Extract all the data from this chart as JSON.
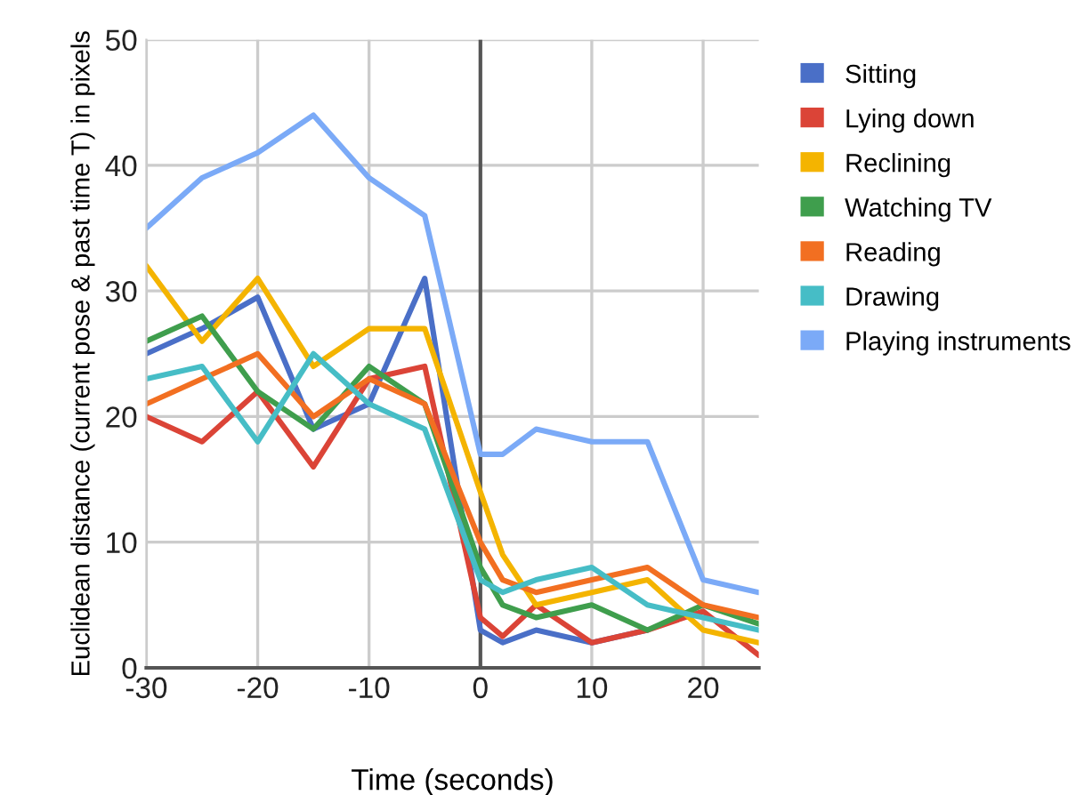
{
  "chart_data": {
    "type": "line",
    "xlabel": "Time (seconds)",
    "ylabel": "Euclidean distance (current pose & past time T) in pixels",
    "x": [
      -30,
      -25,
      -20,
      -15,
      -10,
      -5,
      0,
      2,
      5,
      10,
      15,
      20,
      25
    ],
    "series": [
      {
        "name": "Sitting",
        "color": "#4a6fc7",
        "values": [
          25,
          27,
          29.5,
          19,
          21,
          31,
          3,
          2,
          3,
          2,
          3,
          null,
          null
        ]
      },
      {
        "name": "Lying down",
        "color": "#db4437",
        "values": [
          20,
          18,
          22,
          16,
          23,
          24,
          4,
          2.5,
          5,
          2,
          3,
          4.5,
          1
        ]
      },
      {
        "name": "Reclining",
        "color": "#f4b400",
        "values": [
          32,
          26,
          31,
          24,
          27,
          27,
          14,
          9,
          5,
          6,
          7,
          3,
          2
        ]
      },
      {
        "name": "Watching TV",
        "color": "#3f9e4d",
        "values": [
          26,
          28,
          22,
          19,
          24,
          21,
          8,
          5,
          4,
          5,
          3,
          5,
          3.5
        ]
      },
      {
        "name": "Reading",
        "color": "#f26f21",
        "values": [
          21,
          23,
          25,
          20,
          23,
          21,
          10,
          7,
          6,
          7,
          8,
          5,
          4
        ]
      },
      {
        "name": "Drawing",
        "color": "#46bdc6",
        "values": [
          23,
          24,
          18,
          25,
          21,
          19,
          7,
          6,
          7,
          8,
          5,
          4,
          3
        ]
      },
      {
        "name": "Playing instruments",
        "color": "#7baaf7",
        "values": [
          35,
          39,
          41,
          44,
          39,
          36,
          17,
          17,
          19,
          18,
          18,
          7,
          6
        ]
      }
    ],
    "xlim": [
      -30,
      25
    ],
    "xticks": [
      -30,
      -20,
      -10,
      0,
      10,
      20
    ],
    "ylim": [
      0,
      50
    ],
    "yticks": [
      0,
      10,
      20,
      30,
      40,
      50
    ],
    "ref_lines": [
      {
        "axis": "x",
        "value": 0,
        "color": "#555555"
      }
    ],
    "grid": true,
    "legend": "right",
    "marker": "none",
    "line_style": "solid"
  }
}
